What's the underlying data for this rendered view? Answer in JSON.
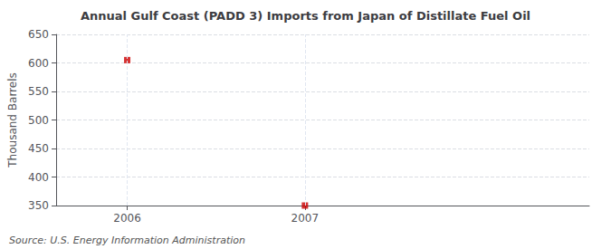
{
  "chart_data": {
    "type": "scatter",
    "title": "Annual Gulf Coast (PADD 3) Imports from Japan of Distillate Fuel Oil",
    "ylabel": "Thousand Barrels",
    "annotations": [
      "Source: U.S. Energy Information Administration"
    ],
    "x": [
      2006,
      2007
    ],
    "values": [
      605,
      350
    ],
    "color": "#CC0000",
    "marker": "square",
    "xlim": [
      2005.6,
      2008.6
    ],
    "xticks": [
      2006,
      2007
    ],
    "ylim": [
      350,
      650
    ],
    "yticks": [
      350,
      400,
      450,
      500,
      550,
      600,
      650
    ],
    "grid": true
  }
}
